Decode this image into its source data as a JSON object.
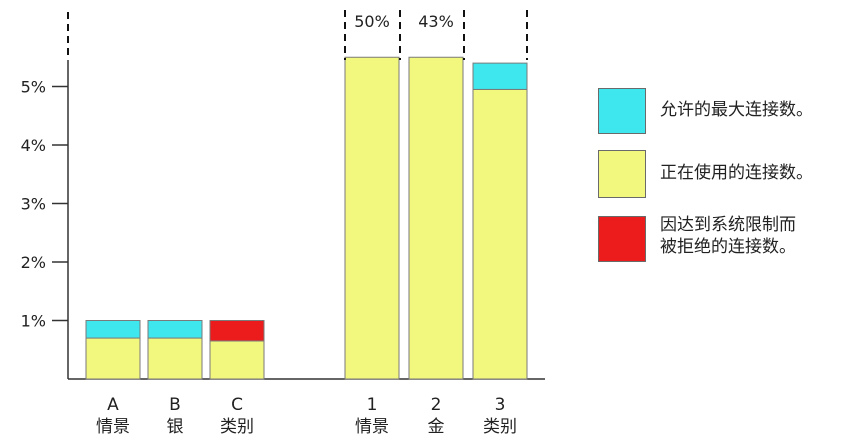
{
  "colors": {
    "max": "#3ee6ee",
    "in_use": "#f2f77e",
    "rejected": "#ec1c1c",
    "axis": "#333333",
    "bar_outline": "#7a7a7a"
  },
  "chart_data": {
    "type": "bar",
    "stacked": true,
    "unit": "%",
    "ylim": [
      0,
      5.5
    ],
    "yticks": [
      {
        "value": 1,
        "label": "1%"
      },
      {
        "value": 2,
        "label": "2%"
      },
      {
        "value": 3,
        "label": "3%"
      },
      {
        "value": 4,
        "label": "4%"
      },
      {
        "value": 5,
        "label": "5%"
      }
    ],
    "grid": false,
    "legend_position": "right",
    "groups": [
      {
        "bars": [
          {
            "label_top": "A",
            "label_bottom": "情景",
            "segments": [
              {
                "series": "in_use",
                "value": 0.7
              },
              {
                "series": "max",
                "value": 0.3
              }
            ]
          },
          {
            "label_top": "B",
            "label_bottom": "银",
            "segments": [
              {
                "series": "in_use",
                "value": 0.7
              },
              {
                "series": "max",
                "value": 0.3
              }
            ]
          },
          {
            "label_top": "C",
            "label_bottom": "类别",
            "segments": [
              {
                "series": "in_use",
                "value": 0.65
              },
              {
                "series": "rejected",
                "value": 0.35
              }
            ]
          }
        ]
      },
      {
        "bars": [
          {
            "label_top": "1",
            "label_bottom": "情景",
            "truncated_label": "50%",
            "segments": [
              {
                "series": "in_use",
                "value": 50
              }
            ]
          },
          {
            "label_top": "2",
            "label_bottom": "金",
            "truncated_label": "43%",
            "segments": [
              {
                "series": "in_use",
                "value": 43
              }
            ]
          },
          {
            "label_top": "3",
            "label_bottom": "类别",
            "segments": [
              {
                "series": "in_use",
                "value": 4.95
              },
              {
                "series": "max",
                "value": 0.45
              }
            ]
          }
        ]
      }
    ],
    "legend": [
      {
        "series": "max",
        "label": "允许的最大连接数。"
      },
      {
        "series": "in_use",
        "label": "正在使用的连接数。"
      },
      {
        "series": "rejected",
        "label": "因达到系统限制而\n被拒绝的连接数。"
      }
    ]
  }
}
